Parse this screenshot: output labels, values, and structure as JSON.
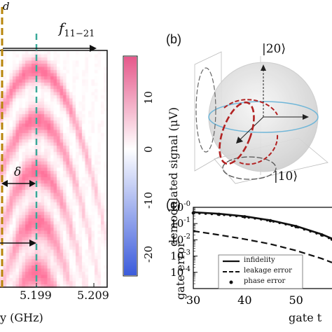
{
  "panel_a": {
    "marker_label_left": "d",
    "marker_label_right": "f",
    "marker_label_right_sub": "11−21",
    "delta_symbol": "δ",
    "xticks": [
      "5.199",
      "5.209"
    ],
    "xlabel_partial": "y (GHz)",
    "colorbar_label": "demodulated signal (μV)",
    "colorbar_ticks": [
      "10",
      "0",
      "-10",
      "-20"
    ],
    "colors": {
      "marker_left": "#b8860b",
      "marker_right": "#3aa999",
      "high": "#e05a8a",
      "low": "#3b5bdb"
    }
  },
  "panel_b": {
    "label": "(b)",
    "ket_top": "|20⟩",
    "ket_bottom": "|10⟩",
    "colors": {
      "path": "#b22222",
      "equator": "#6fb6d8",
      "sphere": "#d9d9d9"
    }
  },
  "panel_c": {
    "label": "(c)",
    "ylabel": "gate error",
    "xlabel_partial": "gate t",
    "chart_data": {
      "type": "line",
      "xlabel": "gate t",
      "ylabel": "gate error",
      "yscale": "log",
      "xlim": [
        30,
        57
      ],
      "ylim": [
        1e-05,
        1
      ],
      "xticks": [
        "30",
        "40",
        "50"
      ],
      "yticks": [
        "10-0",
        "10-1",
        "10-2",
        "10-3",
        "10-4"
      ],
      "series": [
        {
          "name": "infidelity",
          "style": "solid",
          "x": [
            30,
            35,
            40,
            45,
            50,
            55,
            57
          ],
          "y": [
            0.5,
            0.4,
            0.28,
            0.16,
            0.07,
            0.022,
            0.012
          ]
        },
        {
          "name": "leakage error",
          "style": "dashed",
          "x": [
            30,
            35,
            40,
            45,
            50,
            55,
            57
          ],
          "y": [
            0.035,
            0.02,
            0.011,
            0.0055,
            0.0022,
            0.0007,
            0.0004
          ]
        },
        {
          "name": "phase error",
          "style": "dotted",
          "x": [
            30,
            35,
            40,
            45,
            50,
            55,
            57
          ],
          "y": [
            0.45,
            0.37,
            0.26,
            0.15,
            0.065,
            0.02,
            0.011
          ]
        }
      ],
      "legend_position": "bottom-left"
    }
  }
}
